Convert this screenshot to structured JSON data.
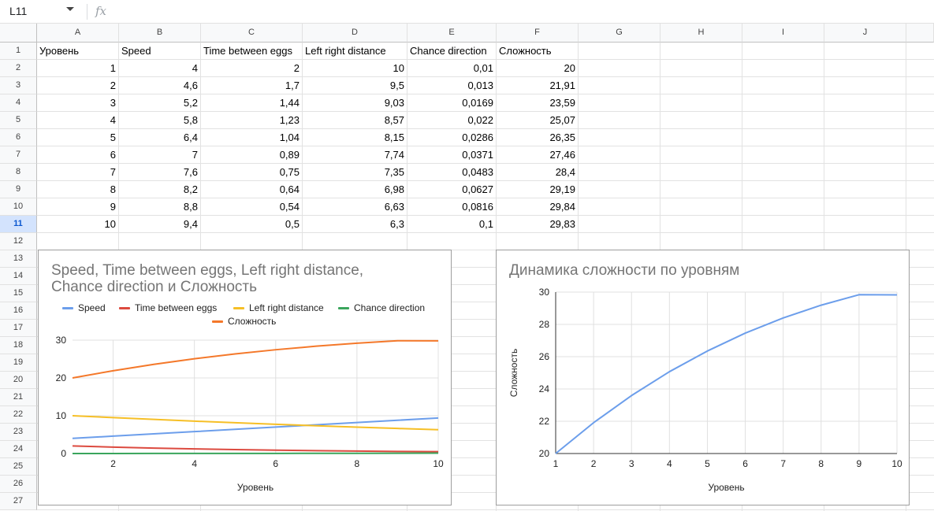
{
  "formula_bar": {
    "name_box": "L11",
    "fx_label": "fx"
  },
  "columns": [
    "A",
    "B",
    "C",
    "D",
    "E",
    "F",
    "G",
    "H",
    "I",
    "J"
  ],
  "rows": [
    "1",
    "2",
    "3",
    "4",
    "5",
    "6",
    "7",
    "8",
    "9",
    "10",
    "11",
    "12",
    "13",
    "14",
    "15",
    "16",
    "17",
    "18",
    "19",
    "20",
    "21",
    "22",
    "23",
    "24",
    "25",
    "26",
    "27"
  ],
  "selected_row": "11",
  "table": {
    "headers": [
      "Уровень",
      "Speed",
      "Time between eggs",
      "Left right distance",
      "Chance direction",
      "Сложность"
    ],
    "rows": [
      [
        "1",
        "4",
        "2",
        "10",
        "0,01",
        "20"
      ],
      [
        "2",
        "4,6",
        "1,7",
        "9,5",
        "0,013",
        "21,91"
      ],
      [
        "3",
        "5,2",
        "1,44",
        "9,03",
        "0,0169",
        "23,59"
      ],
      [
        "4",
        "5,8",
        "1,23",
        "8,57",
        "0,022",
        "25,07"
      ],
      [
        "5",
        "6,4",
        "1,04",
        "8,15",
        "0,0286",
        "26,35"
      ],
      [
        "6",
        "7",
        "0,89",
        "7,74",
        "0,0371",
        "27,46"
      ],
      [
        "7",
        "7,6",
        "0,75",
        "7,35",
        "0,0483",
        "28,4"
      ],
      [
        "8",
        "8,2",
        "0,64",
        "6,98",
        "0,0627",
        "29,19"
      ],
      [
        "9",
        "8,8",
        "0,54",
        "6,63",
        "0,0816",
        "29,84"
      ],
      [
        "10",
        "9,4",
        "0,5",
        "6,3",
        "0,1",
        "29,83"
      ]
    ]
  },
  "chart_data": [
    {
      "type": "line",
      "title_line1": "Speed, Time between eggs, Left right distance,",
      "title_line2": "Chance direction и Сложность",
      "xlabel": "Уровень",
      "ylabel": "",
      "xlim": [
        1,
        10
      ],
      "ylim": [
        0,
        30
      ],
      "x": [
        1,
        2,
        3,
        4,
        5,
        6,
        7,
        8,
        9,
        10
      ],
      "xticks": [
        "2",
        "4",
        "6",
        "8",
        "10"
      ],
      "yticks": [
        "0",
        "10",
        "20",
        "30"
      ],
      "grid": true,
      "legend": "top",
      "series": [
        {
          "name": "Speed",
          "color": "#6c9eeb",
          "values": [
            4,
            4.6,
            5.2,
            5.8,
            6.4,
            7,
            7.6,
            8.2,
            8.8,
            9.4
          ]
        },
        {
          "name": "Time between eggs",
          "color": "#dc4a3f",
          "values": [
            2,
            1.7,
            1.44,
            1.23,
            1.04,
            0.89,
            0.75,
            0.64,
            0.54,
            0.5
          ]
        },
        {
          "name": "Left right distance",
          "color": "#f6bf26",
          "values": [
            10,
            9.5,
            9.03,
            8.57,
            8.15,
            7.74,
            7.35,
            6.98,
            6.63,
            6.3
          ]
        },
        {
          "name": "Chance direction",
          "color": "#3aa55c",
          "values": [
            0.01,
            0.013,
            0.0169,
            0.022,
            0.0286,
            0.0371,
            0.0483,
            0.0627,
            0.0816,
            0.1
          ]
        },
        {
          "name": "Сложность",
          "color": "#f4782a",
          "values": [
            20,
            21.91,
            23.59,
            25.07,
            26.35,
            27.46,
            28.4,
            29.19,
            29.84,
            29.83
          ]
        }
      ]
    },
    {
      "type": "line",
      "title": "Динамика сложности по уровням",
      "xlabel": "Уровень",
      "ylabel": "Сложность",
      "xlim": [
        1,
        10
      ],
      "ylim": [
        20,
        30
      ],
      "x": [
        1,
        2,
        3,
        4,
        5,
        6,
        7,
        8,
        9,
        10
      ],
      "xticks": [
        "1",
        "2",
        "3",
        "4",
        "5",
        "6",
        "7",
        "8",
        "9",
        "10"
      ],
      "yticks": [
        "20",
        "22",
        "24",
        "26",
        "28",
        "30"
      ],
      "grid": true,
      "series": [
        {
          "color": "#6c9eeb",
          "values": [
            20,
            21.91,
            23.59,
            25.07,
            26.35,
            27.46,
            28.4,
            29.19,
            29.84,
            29.83
          ]
        }
      ]
    }
  ]
}
